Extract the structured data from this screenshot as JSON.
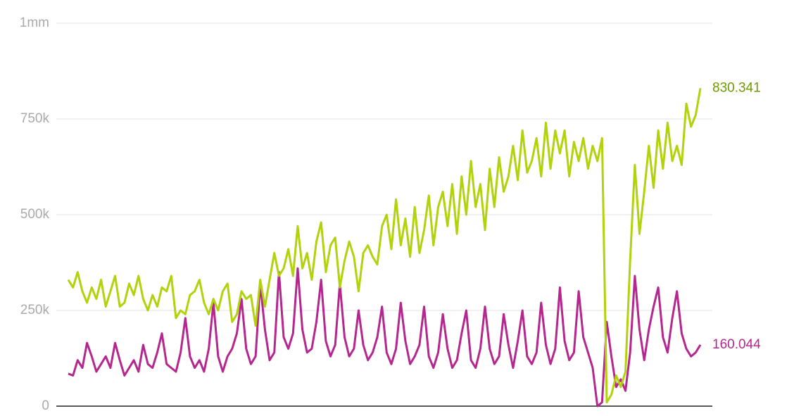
{
  "chart_data": {
    "type": "line",
    "ylim": [
      0,
      1000000
    ],
    "yticks": [
      0,
      {
        "value": 250000,
        "label": "250k"
      },
      {
        "value": 500000,
        "label": "500k"
      },
      {
        "value": 750000,
        "label": "750k"
      },
      {
        "value": 1000000,
        "label": "1mm"
      }
    ],
    "grid": true,
    "series": [
      {
        "color": "#b2d20c",
        "label_color": "#6f9a00",
        "values": [
          330000,
          310000,
          350000,
          300000,
          270000,
          310000,
          280000,
          330000,
          260000,
          300000,
          340000,
          260000,
          270000,
          320000,
          290000,
          340000,
          280000,
          250000,
          290000,
          260000,
          310000,
          300000,
          340000,
          230000,
          250000,
          240000,
          290000,
          300000,
          330000,
          270000,
          240000,
          280000,
          250000,
          300000,
          320000,
          220000,
          240000,
          300000,
          280000,
          290000,
          210000,
          330000,
          260000,
          330000,
          400000,
          340000,
          360000,
          410000,
          340000,
          470000,
          360000,
          400000,
          330000,
          430000,
          480000,
          350000,
          420000,
          440000,
          310000,
          380000,
          430000,
          390000,
          300000,
          400000,
          420000,
          390000,
          370000,
          470000,
          500000,
          410000,
          540000,
          420000,
          490000,
          390000,
          520000,
          400000,
          460000,
          550000,
          420000,
          520000,
          560000,
          470000,
          580000,
          450000,
          600000,
          500000,
          640000,
          520000,
          580000,
          460000,
          620000,
          520000,
          650000,
          560000,
          600000,
          680000,
          590000,
          720000,
          610000,
          640000,
          700000,
          600000,
          740000,
          620000,
          720000,
          660000,
          720000,
          600000,
          690000,
          640000,
          700000,
          620000,
          680000,
          640000,
          700000,
          10000,
          30000,
          80000,
          50000,
          90000,
          380000,
          630000,
          450000,
          560000,
          680000,
          570000,
          720000,
          620000,
          740000,
          640000,
          680000,
          630000,
          790000,
          730000,
          760000,
          830341
        ],
        "value_labels": [
          null,
          null,
          null,
          null,
          null,
          null,
          null,
          null,
          null,
          null,
          null,
          null,
          null,
          null,
          null,
          null,
          null,
          null,
          null,
          null,
          null,
          null,
          null,
          null,
          null,
          null,
          null,
          null,
          null,
          null,
          null,
          null,
          null,
          null,
          null,
          null,
          null,
          null,
          null,
          null,
          null,
          null,
          null,
          null,
          null,
          null,
          null,
          null,
          null,
          null,
          null,
          null,
          null,
          null,
          null,
          null,
          null,
          null,
          null,
          null,
          null,
          null,
          null,
          null,
          null,
          null,
          null,
          null,
          null,
          null,
          null,
          null,
          null,
          null,
          null,
          null,
          null,
          null,
          null,
          null,
          null,
          null,
          null,
          null,
          null,
          null,
          null,
          null,
          null,
          null,
          null,
          null,
          null,
          null,
          null,
          null,
          null,
          null,
          null,
          null,
          null,
          null,
          null,
          null,
          null,
          null,
          null,
          null,
          null,
          null,
          null,
          null,
          null,
          null,
          null,
          null,
          null,
          null,
          null,
          null,
          null,
          null,
          null,
          null,
          null,
          null,
          null,
          null,
          null,
          null,
          null,
          null,
          null,
          null,
          null,
          "830.341"
        ]
      },
      {
        "color": "#b5268e",
        "label_color": "#b5268e",
        "values": [
          85000,
          80000,
          120000,
          100000,
          165000,
          130000,
          90000,
          110000,
          130000,
          100000,
          165000,
          120000,
          80000,
          100000,
          120000,
          90000,
          160000,
          110000,
          100000,
          140000,
          190000,
          110000,
          100000,
          90000,
          140000,
          230000,
          130000,
          100000,
          120000,
          90000,
          150000,
          270000,
          130000,
          90000,
          130000,
          150000,
          190000,
          280000,
          150000,
          110000,
          130000,
          320000,
          200000,
          120000,
          140000,
          350000,
          180000,
          150000,
          190000,
          360000,
          200000,
          140000,
          150000,
          220000,
          330000,
          170000,
          130000,
          160000,
          320000,
          180000,
          130000,
          150000,
          250000,
          160000,
          120000,
          140000,
          180000,
          260000,
          140000,
          110000,
          150000,
          270000,
          170000,
          110000,
          130000,
          160000,
          260000,
          130000,
          100000,
          140000,
          240000,
          150000,
          100000,
          120000,
          190000,
          250000,
          120000,
          100000,
          150000,
          260000,
          150000,
          110000,
          130000,
          240000,
          160000,
          100000,
          170000,
          250000,
          130000,
          110000,
          140000,
          270000,
          160000,
          110000,
          150000,
          310000,
          170000,
          120000,
          140000,
          300000,
          180000,
          140000,
          100000,
          0,
          10000,
          220000,
          130000,
          50000,
          70000,
          40000,
          140000,
          340000,
          200000,
          120000,
          200000,
          260000,
          310000,
          180000,
          140000,
          230000,
          300000,
          190000,
          150000,
          130000,
          140000,
          160044
        ],
        "value_labels": [
          null,
          null,
          null,
          null,
          null,
          null,
          null,
          null,
          null,
          null,
          null,
          null,
          null,
          null,
          null,
          null,
          null,
          null,
          null,
          null,
          null,
          null,
          null,
          null,
          null,
          null,
          null,
          null,
          null,
          null,
          null,
          null,
          null,
          null,
          null,
          null,
          null,
          null,
          null,
          null,
          null,
          null,
          null,
          null,
          null,
          null,
          null,
          null,
          null,
          null,
          null,
          null,
          null,
          null,
          null,
          null,
          null,
          null,
          null,
          null,
          null,
          null,
          null,
          null,
          null,
          null,
          null,
          null,
          null,
          null,
          null,
          null,
          null,
          null,
          null,
          null,
          null,
          null,
          null,
          null,
          null,
          null,
          null,
          null,
          null,
          null,
          null,
          null,
          null,
          null,
          null,
          null,
          null,
          null,
          null,
          null,
          null,
          null,
          null,
          null,
          null,
          null,
          null,
          null,
          null,
          null,
          null,
          null,
          null,
          null,
          null,
          null,
          null,
          null,
          null,
          null,
          null,
          null,
          null,
          null,
          null,
          null,
          null,
          null,
          null,
          null,
          null,
          null,
          null,
          null,
          null,
          null,
          null,
          null,
          null,
          "160.044"
        ]
      }
    ]
  }
}
